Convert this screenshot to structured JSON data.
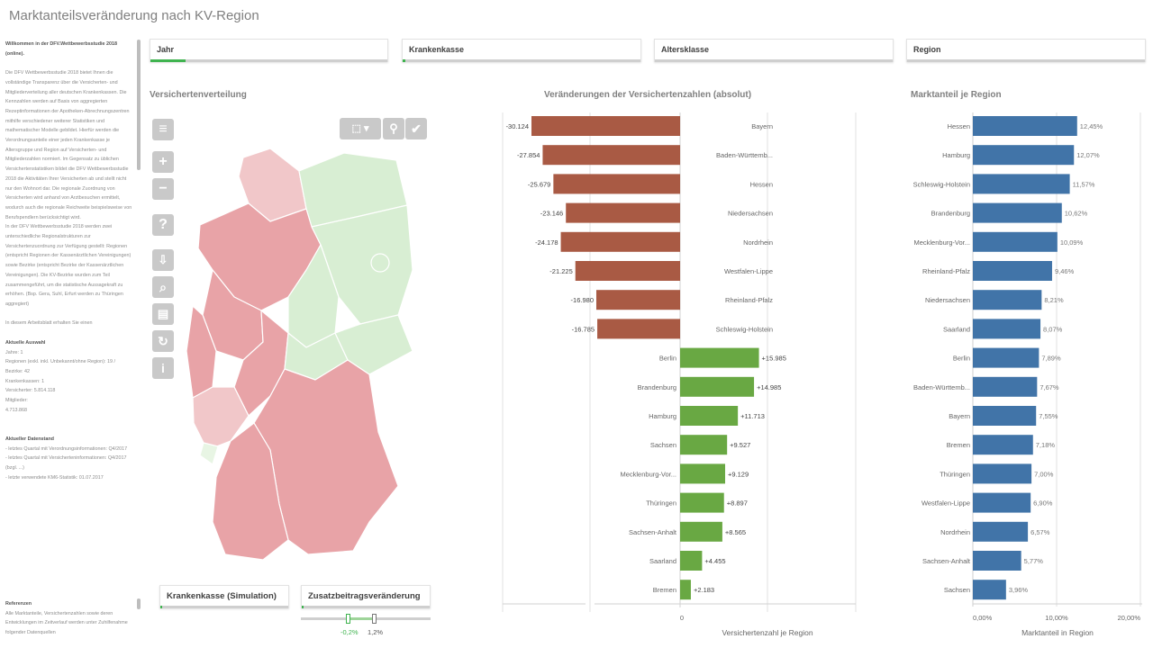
{
  "title": "Marktanteilsveränderung nach KV-Region",
  "sidebar": {
    "heading": "Willkommen in der DFV.Wettbewerbsstudie 2018 (online).",
    "intro": "Die DFV Wettbewerbsstudie 2018 bietet Ihnen die vollständige Transparenz über die Versicherten- und Mitgliederverteilung aller deutschen Krankenkassen. Die Kennzahlen werden auf Basis von aggregierten Rezeptinformationen der Apotheken-Abrechnungszentren mithilfe verschiedener weiterer Statistiken und mathematischer Modelle gebildet. Hierfür werden die Verordnungsanteile einer jeden Krankenkasse je Altersgruppe und Region auf Versicherten- und Mitgliederzahlen normiert. Im Gegensatz zu üblichen Versichertenstatistiken bildet die DFV Wettbewerbsstudie 2018 die Aktivitäten Ihrer Versicherten ab und stellt nicht nur den Wohnort dar. Die regionale Zuordnung von Versicherten wird anhand von Arztbesuchen ermittelt, wodurch auch die regionale Reichweite beispielsweise von Berufspendlern berücksichtigt wird.",
    "intro2": "In der DFV Wettbewerbsstudie 2018 werden zwei unterschiedliche Regionalstrukturen zur Versichertenzuordnung zur Verfügung gestellt: Regionen (entspricht Regionen der Kassenärztlichen Vereinigungen) sowie Bezirke (entspricht Bezirke der Kassenärztlichen Vereinigungen). Die KV-Bezirke wurden zum Teil zusammengeführt, um die statistische Aussagekraft zu erhöhen. (Bsp. Gera, Suhl, Erfurt werden zu Thüringen aggregiert)",
    "intro3": "In diesem Arbeitsblatt erhalten Sie einen",
    "selection_heading": "Aktuelle Auswahl",
    "selection_lines": [
      "Jahre: 1",
      "Regionen (exkl. inkl. Unbekannt/ohne Region): 19 / Bezirke: 42",
      "Krankenkassen: 1",
      "Versicherter: 5.814.118",
      "Mitglieder:",
      "4.713.868"
    ],
    "data_heading": "Aktueller Datenstand",
    "data_lines": [
      "- letztes Quartal mit Verordnungsinformationen: Q4/2017",
      "- letztes Quartal mit Versicherteninformationen: Q4/2017 (bzgl. ...)",
      "- letzte verwendete KM6-Statistik: 01.07.2017"
    ],
    "ref_heading": "Referenzen",
    "ref_text": "Alle Marktanteile, Versichertenzahlen sowie deren Entwicklungen im Zeitverlauf werden unter Zuhilfenahme folgender Datenquellen"
  },
  "filters": [
    {
      "label": "Jahr",
      "selected_fraction": 0.15
    },
    {
      "label": "Krankenkasse",
      "selected_fraction": 0.01
    },
    {
      "label": "Altersklasse",
      "selected_fraction": 0
    },
    {
      "label": "Region",
      "selected_fraction": 0
    }
  ],
  "map": {
    "title": "Versichertenverteilung",
    "tools": {
      "menu": "menu-icon",
      "zoom_in": "plus-icon",
      "zoom_out": "minus-icon",
      "help": "help-icon",
      "export": "export-icon",
      "search": "search-icon",
      "print": "print-icon",
      "refresh": "refresh-icon",
      "info": "info-icon",
      "lasso": "lasso-select-icon",
      "pin": "location-pin-icon",
      "confirm": "check-icon"
    },
    "colors": {
      "strong_loss": "#e8a3a7",
      "loss": "#f1c7c9",
      "gain": "#d8eed3",
      "small_gain": "#e8f5e4"
    }
  },
  "simulation": {
    "kasse_label": "Krankenkasse (Simulation)",
    "zusatz_label": "Zusatzbeitragsveränderung",
    "slider_min": "-0,2%",
    "slider_max": "1,2%"
  },
  "chart_data": [
    {
      "type": "bar",
      "orientation": "horizontal",
      "title": "Veränderungen der Versichertenzahlen (absolut)",
      "xlabel": "Versichertenzahl je Region",
      "x_ticks": [
        "0"
      ],
      "categories": [
        "Bayern",
        "Baden-Württemb...",
        "Hessen",
        "Niedersachsen",
        "Nordrhein",
        "Westfalen-Lippe",
        "Rheinland-Pfalz",
        "Schleswig-Holstein",
        "Berlin",
        "Brandenburg",
        "Hamburg",
        "Sachsen",
        "Mecklenburg-Vor...",
        "Thüringen",
        "Sachsen-Anhalt",
        "Saarland",
        "Bremen"
      ],
      "values": [
        -30124,
        -27854,
        -25679,
        -23146,
        -24178,
        -21225,
        -16980,
        -16785,
        15985,
        14985,
        11713,
        9527,
        9129,
        8897,
        8565,
        4455,
        2183
      ],
      "labels": [
        "-30.124",
        "-27.854",
        "-25.679",
        "-23.146",
        "-24.178",
        "-21.225",
        "-16.980",
        "-16.785",
        "+15.985",
        "+14.985",
        "+11.713",
        "+9.527",
        "+9.129",
        "+8.897",
        "+8.565",
        "+4.455",
        "+2.183"
      ],
      "colors": {
        "negative": "#a95a44",
        "positive": "#69a843"
      }
    },
    {
      "type": "bar",
      "orientation": "horizontal",
      "title": "Marktanteil je Region",
      "xlabel": "Marktanteil in Region",
      "x_ticks": [
        "0,00%",
        "10,00%",
        "20,00%"
      ],
      "xlim": [
        0,
        20
      ],
      "categories": [
        "Hessen",
        "Hamburg",
        "Schleswig-Holstein",
        "Brandenburg",
        "Mecklenburg-Vor...",
        "Rheinland-Pfalz",
        "Niedersachsen",
        "Saarland",
        "Berlin",
        "Baden-Württemb...",
        "Bayern",
        "Bremen",
        "Thüringen",
        "Westfalen-Lippe",
        "Nordrhein",
        "Sachsen-Anhalt",
        "Sachsen"
      ],
      "values": [
        12.45,
        12.07,
        11.57,
        10.62,
        10.09,
        9.46,
        8.21,
        8.07,
        7.89,
        7.67,
        7.55,
        7.18,
        7.0,
        6.9,
        6.57,
        5.77,
        3.96
      ],
      "labels": [
        "12,45%",
        "12,07%",
        "11,57%",
        "10,62%",
        "10,09%",
        "9,46%",
        "8,21%",
        "8,07%",
        "7,89%",
        "7,67%",
        "7,55%",
        "7,18%",
        "7,00%",
        "6,90%",
        "6,57%",
        "5,77%",
        "3,96%"
      ],
      "color": "#4174a8"
    }
  ]
}
